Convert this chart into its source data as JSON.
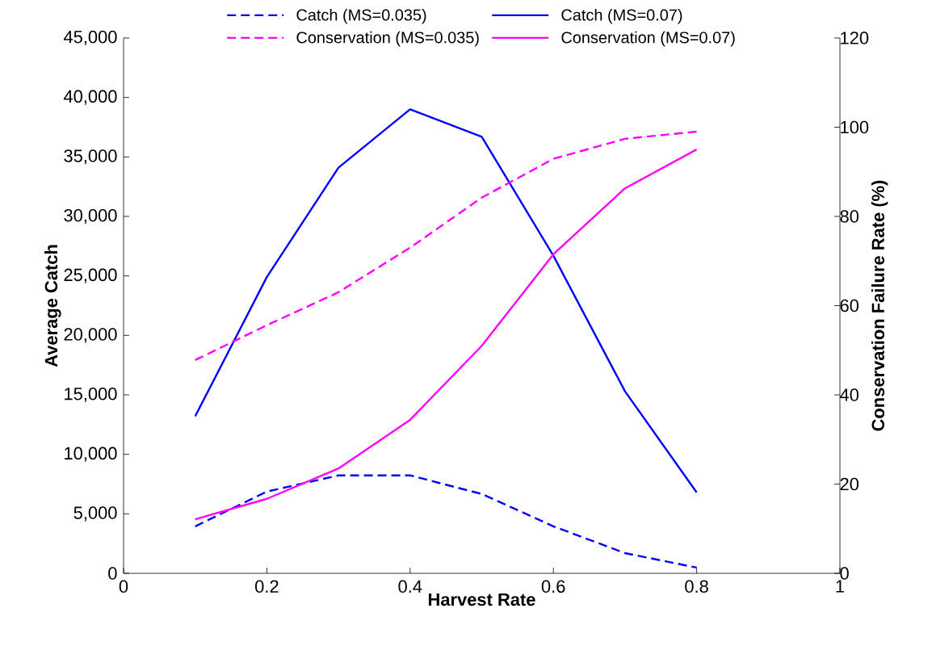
{
  "chart_data": {
    "type": "line",
    "xlabel": "Harvest Rate",
    "ylabel": "Average Catch",
    "y2label": "Conservation Failure Rate (%)",
    "x": [
      0.1,
      0.2,
      0.3,
      0.4,
      0.5,
      0.6,
      0.7,
      0.8
    ],
    "series": [
      {
        "name": "Catch (MS=0.035)",
        "color": "#0000ff",
        "line_style": "dashed",
        "values": [
          3950,
          6870,
          8230,
          8230,
          6670,
          3950,
          1700,
          480
        ]
      },
      {
        "name": "Catch (MS=0.07)",
        "color": "#0000ff",
        "line_style": "solid",
        "values": [
          13200,
          24900,
          34100,
          39000,
          36700,
          26700,
          15300,
          6800
        ]
      },
      {
        "name": "Conservation (MS=0.035)",
        "color": "#ff00ff",
        "line_style": "dashed",
        "axis": "y2",
        "values": [
          47.8,
          55.6,
          63,
          73,
          84.2,
          92.9,
          97.4,
          99
        ]
      },
      {
        "name": "Conservation (MS=0.07)",
        "color": "#ff00ff",
        "line_style": "solid",
        "axis": "y2",
        "values": [
          12.1,
          16.7,
          23.5,
          34.4,
          51,
          71.5,
          86.3,
          95
        ]
      }
    ],
    "xlim": [
      0,
      1
    ],
    "xticks": [
      0,
      0.2,
      0.4,
      0.6,
      0.8,
      1
    ],
    "ylim": [
      0,
      45000
    ],
    "yticks": [
      0,
      {
        "value": 5000,
        "label": "5,000"
      },
      {
        "value": 10000,
        "label": "10,000"
      },
      {
        "value": 15000,
        "label": "15,000"
      },
      {
        "value": 20000,
        "label": "20,000"
      },
      {
        "value": 25000,
        "label": "25,000"
      },
      {
        "value": 30000,
        "label": "30,000"
      },
      {
        "value": 35000,
        "label": "35,000"
      },
      {
        "value": 40000,
        "label": "40,000"
      },
      {
        "value": 45000,
        "label": "45,000"
      }
    ],
    "y2lim": [
      0,
      120
    ],
    "y2ticks": [
      0,
      20,
      40,
      60,
      80,
      100,
      120
    ],
    "grid": false,
    "legend": "top",
    "marker": "none"
  }
}
